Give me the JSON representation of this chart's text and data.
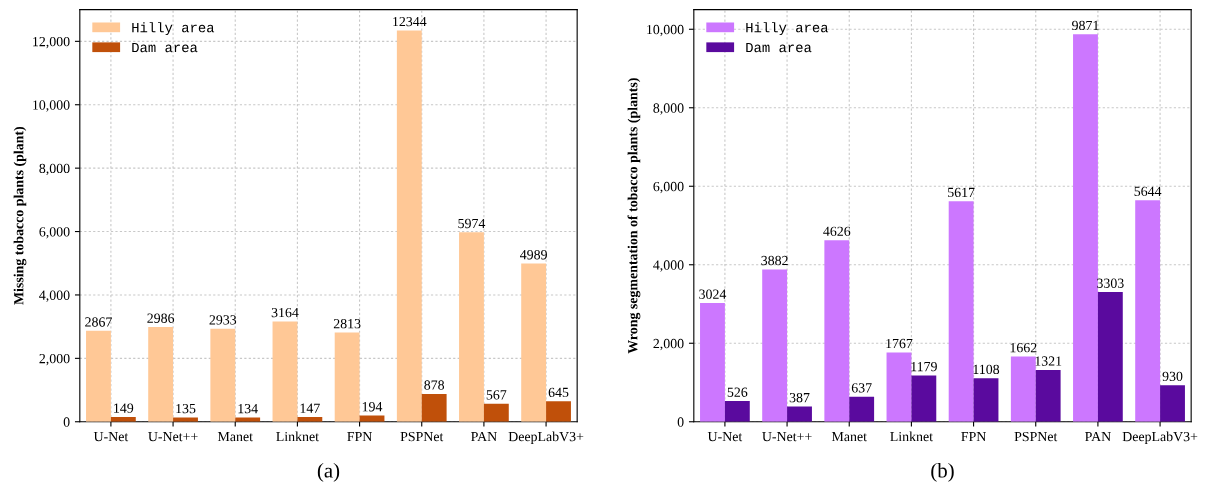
{
  "chart_data": [
    {
      "type": "bar",
      "ylabel": "Missing tobacco plants (plant)",
      "categories": [
        "U-Net",
        "U-Net++",
        "Manet",
        "Linknet",
        "FPN",
        "PSPNet",
        "PAN",
        "DeepLabV3+"
      ],
      "series": [
        {
          "name": "Hilly area",
          "color": "#ffc896",
          "values": [
            2867,
            2986,
            2933,
            3164,
            2813,
            12344,
            5974,
            4989
          ]
        },
        {
          "name": "Dam area",
          "color": "#c0500a",
          "values": [
            149,
            135,
            134,
            147,
            194,
            878,
            567,
            645
          ]
        }
      ],
      "ylim": [
        0,
        13000
      ],
      "yticks": [
        {
          "value": 0,
          "label": "0"
        },
        {
          "value": 2000,
          "label": "2,000"
        },
        {
          "value": 4000,
          "label": "4,000"
        },
        {
          "value": 6000,
          "label": "6,000"
        },
        {
          "value": 8000,
          "label": "8,000"
        },
        {
          "value": 10000,
          "label": "10,000"
        },
        {
          "value": 12000,
          "label": "12,000"
        }
      ],
      "grid": true,
      "legend": "top left",
      "data_labels": true,
      "annotations": [
        "(a)"
      ]
    },
    {
      "type": "bar",
      "ylabel": "Wrong segmentation of tobacco plants (plants)",
      "categories": [
        "U-Net",
        "U-Net++",
        "Manet",
        "Linknet",
        "FPN",
        "PSPNet",
        "PAN",
        "DeepLabV3+"
      ],
      "series": [
        {
          "name": "Hilly area",
          "color": "#cc77ff",
          "values": [
            3024,
            3882,
            4626,
            1767,
            5617,
            1662,
            9871,
            5644
          ]
        },
        {
          "name": "Dam area",
          "color": "#5a0a9e",
          "values": [
            526,
            387,
            637,
            1179,
            1108,
            1321,
            3303,
            930
          ]
        }
      ],
      "ylim": [
        0,
        10500
      ],
      "yticks": [
        {
          "value": 0,
          "label": "0"
        },
        {
          "value": 2000,
          "label": "2,000"
        },
        {
          "value": 4000,
          "label": "4,000"
        },
        {
          "value": 6000,
          "label": "6,000"
        },
        {
          "value": 8000,
          "label": "8,000"
        },
        {
          "value": 10000,
          "label": "10,000"
        }
      ],
      "grid": true,
      "legend": "top left",
      "data_labels": true,
      "annotations": [
        "(b)"
      ]
    }
  ]
}
